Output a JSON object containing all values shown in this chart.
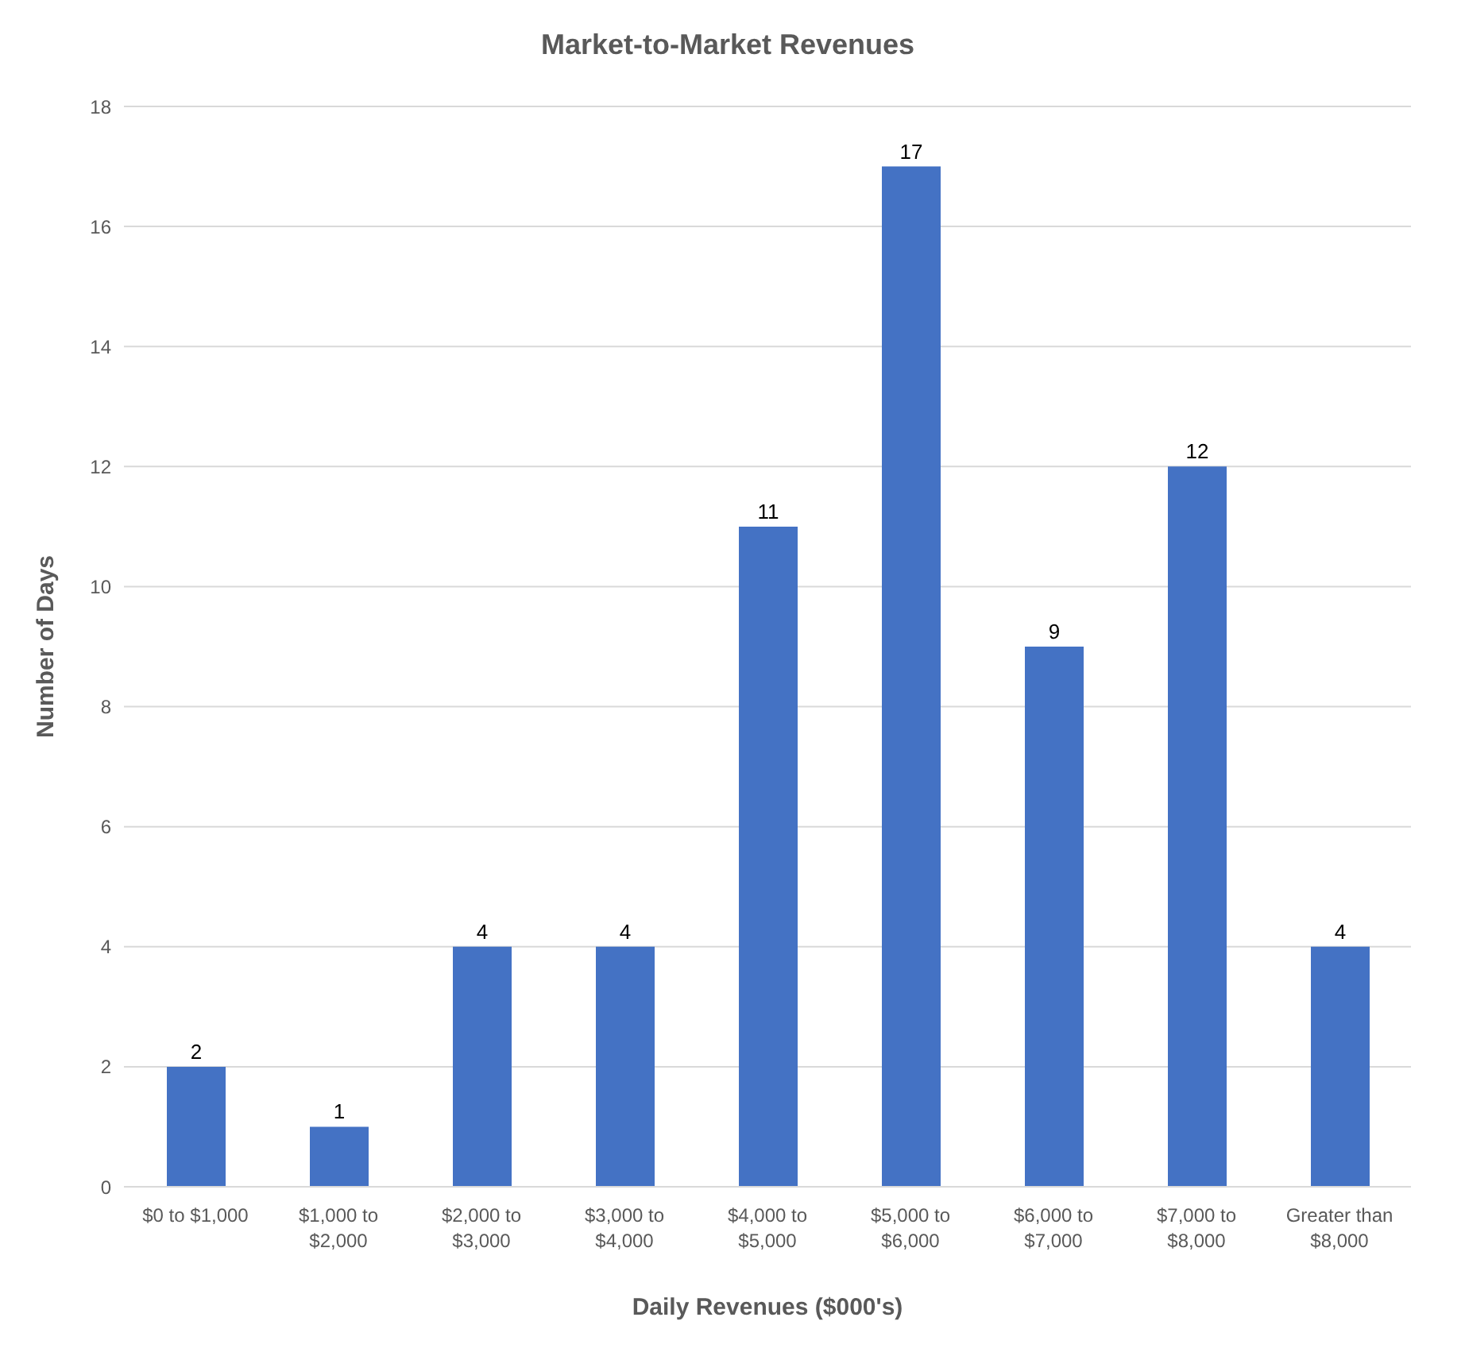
{
  "chart_data": {
    "type": "bar",
    "title": "Market-to-Market Revenues",
    "xlabel": "Daily Revenues ($000's)",
    "ylabel": "Number of Days",
    "categories": [
      "$0 to $1,000",
      "$1,000 to $2,000",
      "$2,000 to $3,000",
      "$3,000 to $4,000",
      "$4,000 to $5,000",
      "$5,000 to $6,000",
      "$6,000 to $7,000",
      "$7,000 to $8,000",
      "Greater than $8,000"
    ],
    "values": [
      2,
      1,
      4,
      4,
      11,
      17,
      9,
      12,
      4
    ],
    "color": "#4472c4",
    "ylim": [
      0,
      18
    ],
    "yticks": [
      0,
      2,
      4,
      6,
      8,
      10,
      12,
      14,
      16,
      18
    ],
    "grid": "y",
    "data_labels": true
  }
}
